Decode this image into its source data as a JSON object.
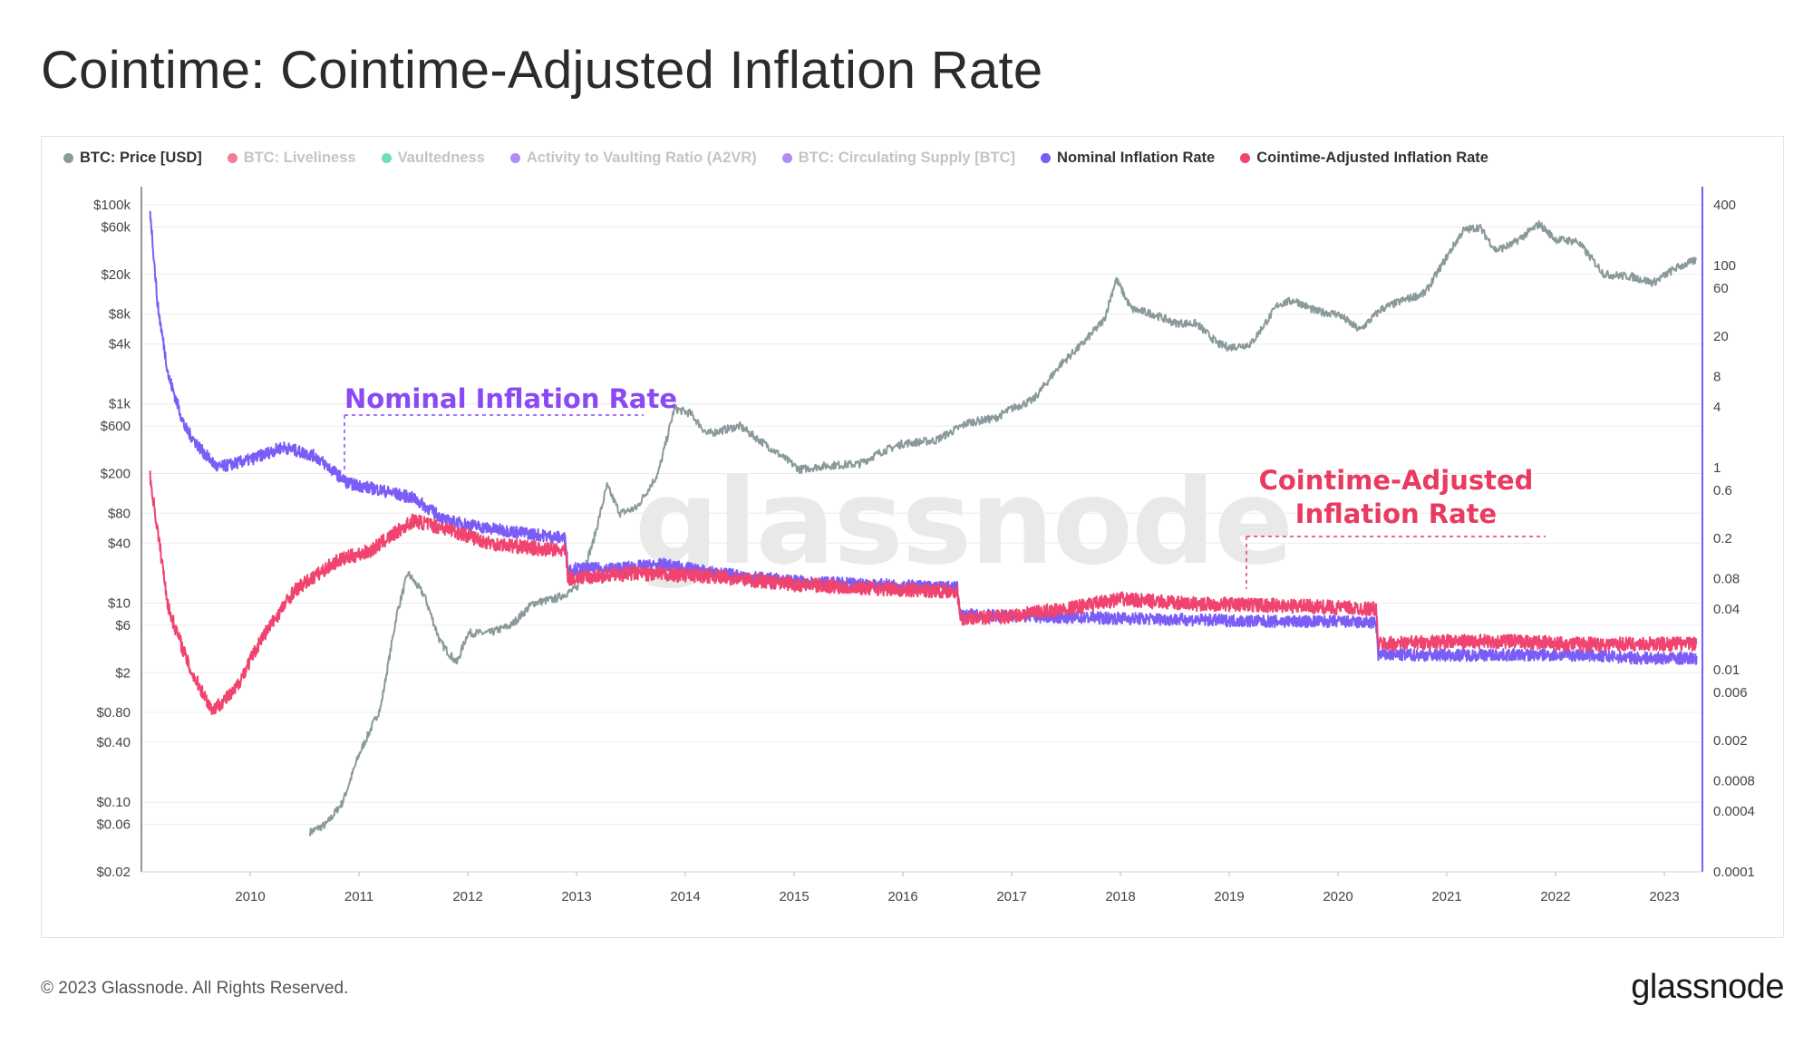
{
  "page": {
    "title": "Cointime: Cointime-Adjusted Inflation Rate",
    "watermark": "glassnode",
    "footer": "© 2023 Glassnode. All Rights Reserved.",
    "brand": "glassnode"
  },
  "legend": [
    {
      "label": "BTC: Price [USD]",
      "color": "#8a9a9b",
      "active": true
    },
    {
      "label": "BTC: Liveliness",
      "color": "#f0436f",
      "active": false
    },
    {
      "label": "Vaultedness",
      "color": "#2fd29b",
      "active": false
    },
    {
      "label": "Activity to Vaulting Ratio (A2VR)",
      "color": "#8b5cf6",
      "active": false
    },
    {
      "label": "BTC: Circulating Supply [BTC]",
      "color": "#8b5cf6",
      "active": false
    },
    {
      "label": "Nominal Inflation Rate",
      "color": "#7b5cf6",
      "active": true
    },
    {
      "label": "Cointime-Adjusted Inflation Rate",
      "color": "#f0436f",
      "active": true
    }
  ],
  "annotations": {
    "nominal": "Nominal Inflation Rate",
    "cointime_line1": "Cointime-Adjusted",
    "cointime_line2": "Inflation Rate"
  },
  "chart_data": {
    "type": "line",
    "title": "Cointime: Cointime-Adjusted Inflation Rate",
    "x_ticks": [
      "2010",
      "2011",
      "2012",
      "2013",
      "2014",
      "2015",
      "2016",
      "2017",
      "2018",
      "2019",
      "2020",
      "2021",
      "2022",
      "2023"
    ],
    "xlim": [
      2009.0,
      2023.35
    ],
    "left_axis": {
      "scale": "log",
      "ylim": [
        0.02,
        100000
      ],
      "ticks": [
        {
          "v": 100000,
          "label": "$100k"
        },
        {
          "v": 60000,
          "label": "$60k"
        },
        {
          "v": 20000,
          "label": "$20k"
        },
        {
          "v": 8000,
          "label": "$8k"
        },
        {
          "v": 4000,
          "label": "$4k"
        },
        {
          "v": 1000,
          "label": "$1k"
        },
        {
          "v": 600,
          "label": "$600"
        },
        {
          "v": 200,
          "label": "$200"
        },
        {
          "v": 80,
          "label": "$80"
        },
        {
          "v": 40,
          "label": "$40"
        },
        {
          "v": 10,
          "label": "$10"
        },
        {
          "v": 6,
          "label": "$6"
        },
        {
          "v": 2,
          "label": "$2"
        },
        {
          "v": 0.8,
          "label": "$0.80"
        },
        {
          "v": 0.4,
          "label": "$0.40"
        },
        {
          "v": 0.1,
          "label": "$0.10"
        },
        {
          "v": 0.06,
          "label": "$0.06"
        },
        {
          "v": 0.02,
          "label": "$0.02"
        }
      ]
    },
    "right_axis": {
      "scale": "log",
      "ylim": [
        0.0001,
        400
      ],
      "ticks": [
        {
          "v": 400,
          "label": "400"
        },
        {
          "v": 100,
          "label": "100"
        },
        {
          "v": 60,
          "label": "60"
        },
        {
          "v": 20,
          "label": "20"
        },
        {
          "v": 8,
          "label": "8"
        },
        {
          "v": 4,
          "label": "4"
        },
        {
          "v": 1,
          "label": "1"
        },
        {
          "v": 0.6,
          "label": "0.6"
        },
        {
          "v": 0.2,
          "label": "0.2"
        },
        {
          "v": 0.08,
          "label": "0.08"
        },
        {
          "v": 0.04,
          "label": "0.04"
        },
        {
          "v": 0.01,
          "label": "0.01"
        },
        {
          "v": 0.006,
          "label": "0.006"
        },
        {
          "v": 0.002,
          "label": "0.002"
        },
        {
          "v": 0.0008,
          "label": "0.0008"
        },
        {
          "v": 0.0004,
          "label": "0.0004"
        },
        {
          "v": 0.0001,
          "label": "0.0001"
        }
      ]
    },
    "series": [
      {
        "name": "BTC: Price [USD]",
        "axis": "left",
        "color": "#8a9a9b",
        "points": [
          [
            2010.55,
            0.05
          ],
          [
            2010.7,
            0.06
          ],
          [
            2010.85,
            0.1
          ],
          [
            2011.0,
            0.3
          ],
          [
            2011.2,
            0.9
          ],
          [
            2011.35,
            8
          ],
          [
            2011.45,
            20
          ],
          [
            2011.6,
            12
          ],
          [
            2011.75,
            4
          ],
          [
            2011.9,
            2.5
          ],
          [
            2012.0,
            5
          ],
          [
            2012.2,
            5
          ],
          [
            2012.4,
            6
          ],
          [
            2012.6,
            10
          ],
          [
            2012.8,
            11
          ],
          [
            2013.0,
            14
          ],
          [
            2013.15,
            40
          ],
          [
            2013.28,
            150
          ],
          [
            2013.4,
            80
          ],
          [
            2013.55,
            90
          ],
          [
            2013.75,
            200
          ],
          [
            2013.9,
            900
          ],
          [
            2014.05,
            800
          ],
          [
            2014.2,
            500
          ],
          [
            2014.5,
            600
          ],
          [
            2014.8,
            350
          ],
          [
            2015.05,
            220
          ],
          [
            2015.3,
            240
          ],
          [
            2015.6,
            250
          ],
          [
            2015.8,
            330
          ],
          [
            2016.0,
            400
          ],
          [
            2016.3,
            430
          ],
          [
            2016.6,
            650
          ],
          [
            2016.85,
            720
          ],
          [
            2017.0,
            900
          ],
          [
            2017.2,
            1100
          ],
          [
            2017.45,
            2500
          ],
          [
            2017.65,
            4000
          ],
          [
            2017.85,
            7000
          ],
          [
            2017.96,
            18000
          ],
          [
            2018.1,
            9000
          ],
          [
            2018.3,
            8000
          ],
          [
            2018.5,
            6500
          ],
          [
            2018.7,
            6400
          ],
          [
            2018.9,
            4000
          ],
          [
            2019.0,
            3700
          ],
          [
            2019.2,
            4000
          ],
          [
            2019.45,
            10000
          ],
          [
            2019.6,
            11000
          ],
          [
            2019.8,
            8500
          ],
          [
            2020.0,
            8000
          ],
          [
            2020.2,
            5500
          ],
          [
            2020.4,
            9000
          ],
          [
            2020.6,
            11000
          ],
          [
            2020.8,
            13000
          ],
          [
            2021.0,
            30000
          ],
          [
            2021.15,
            55000
          ],
          [
            2021.3,
            60000
          ],
          [
            2021.45,
            35000
          ],
          [
            2021.6,
            40000
          ],
          [
            2021.85,
            64000
          ],
          [
            2022.0,
            45000
          ],
          [
            2022.2,
            43000
          ],
          [
            2022.45,
            20000
          ],
          [
            2022.7,
            19000
          ],
          [
            2022.9,
            16500
          ],
          [
            2023.1,
            23000
          ],
          [
            2023.3,
            28000
          ]
        ]
      },
      {
        "name": "Nominal Inflation Rate",
        "axis": "right",
        "color": "#7b5cf6",
        "points": [
          [
            2009.08,
            350
          ],
          [
            2009.15,
            40
          ],
          [
            2009.25,
            8
          ],
          [
            2009.4,
            2.5
          ],
          [
            2009.55,
            1.5
          ],
          [
            2009.7,
            1.0
          ],
          [
            2010.0,
            1.2
          ],
          [
            2010.3,
            1.6
          ],
          [
            2010.6,
            1.3
          ],
          [
            2010.9,
            0.7
          ],
          [
            2011.2,
            0.6
          ],
          [
            2011.5,
            0.5
          ],
          [
            2011.8,
            0.3
          ],
          [
            2012.2,
            0.25
          ],
          [
            2012.6,
            0.22
          ],
          [
            2012.9,
            0.2
          ],
          [
            2012.92,
            0.1
          ],
          [
            2013.3,
            0.1
          ],
          [
            2013.8,
            0.11
          ],
          [
            2014.3,
            0.09
          ],
          [
            2015.0,
            0.075
          ],
          [
            2015.6,
            0.07
          ],
          [
            2016.0,
            0.068
          ],
          [
            2016.5,
            0.065
          ],
          [
            2016.53,
            0.035
          ],
          [
            2017.0,
            0.034
          ],
          [
            2017.6,
            0.033
          ],
          [
            2018.2,
            0.032
          ],
          [
            2018.8,
            0.031
          ],
          [
            2019.4,
            0.03
          ],
          [
            2020.0,
            0.03
          ],
          [
            2020.35,
            0.029
          ],
          [
            2020.37,
            0.014
          ],
          [
            2021.0,
            0.014
          ],
          [
            2021.6,
            0.014
          ],
          [
            2022.2,
            0.014
          ],
          [
            2022.8,
            0.013
          ],
          [
            2023.3,
            0.013
          ]
        ]
      },
      {
        "name": "Cointime-Adjusted Inflation Rate",
        "axis": "right",
        "color": "#f0436f",
        "points": [
          [
            2009.08,
            0.8
          ],
          [
            2009.25,
            0.04
          ],
          [
            2009.45,
            0.01
          ],
          [
            2009.65,
            0.004
          ],
          [
            2009.85,
            0.006
          ],
          [
            2010.1,
            0.02
          ],
          [
            2010.4,
            0.06
          ],
          [
            2010.8,
            0.12
          ],
          [
            2011.1,
            0.15
          ],
          [
            2011.5,
            0.3
          ],
          [
            2011.8,
            0.25
          ],
          [
            2012.2,
            0.18
          ],
          [
            2012.6,
            0.16
          ],
          [
            2012.9,
            0.15
          ],
          [
            2012.92,
            0.08
          ],
          [
            2013.5,
            0.09
          ],
          [
            2014.2,
            0.085
          ],
          [
            2015.0,
            0.07
          ],
          [
            2015.6,
            0.065
          ],
          [
            2016.0,
            0.062
          ],
          [
            2016.5,
            0.06
          ],
          [
            2016.53,
            0.032
          ],
          [
            2017.0,
            0.034
          ],
          [
            2017.5,
            0.04
          ],
          [
            2018.0,
            0.05
          ],
          [
            2018.6,
            0.045
          ],
          [
            2019.2,
            0.044
          ],
          [
            2019.8,
            0.042
          ],
          [
            2020.35,
            0.04
          ],
          [
            2020.37,
            0.018
          ],
          [
            2021.0,
            0.019
          ],
          [
            2021.6,
            0.019
          ],
          [
            2022.2,
            0.018
          ],
          [
            2022.8,
            0.018
          ],
          [
            2023.3,
            0.018
          ]
        ]
      }
    ]
  }
}
